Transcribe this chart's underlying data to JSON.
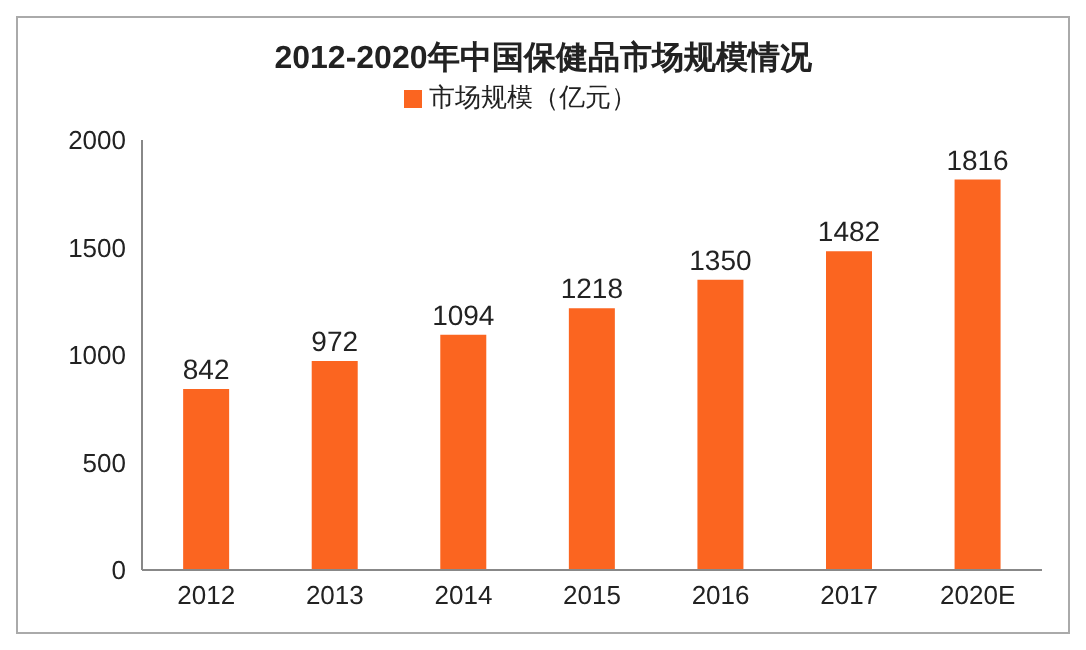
{
  "chart_data": {
    "type": "bar",
    "title": "2012-2020年中国保健品市场规模情况",
    "categories": [
      "2012",
      "2013",
      "2014",
      "2015",
      "2016",
      "2017",
      "2020E"
    ],
    "series": [
      {
        "name": "市场规模（亿元）",
        "color": "#fb6520",
        "values": [
          842,
          972,
          1094,
          1218,
          1350,
          1482,
          1816
        ]
      }
    ],
    "ylim": [
      0,
      2000
    ],
    "yticks": [
      0,
      500,
      1000,
      1500,
      2000
    ],
    "grid": false,
    "legend": "top",
    "data_labels": true
  }
}
